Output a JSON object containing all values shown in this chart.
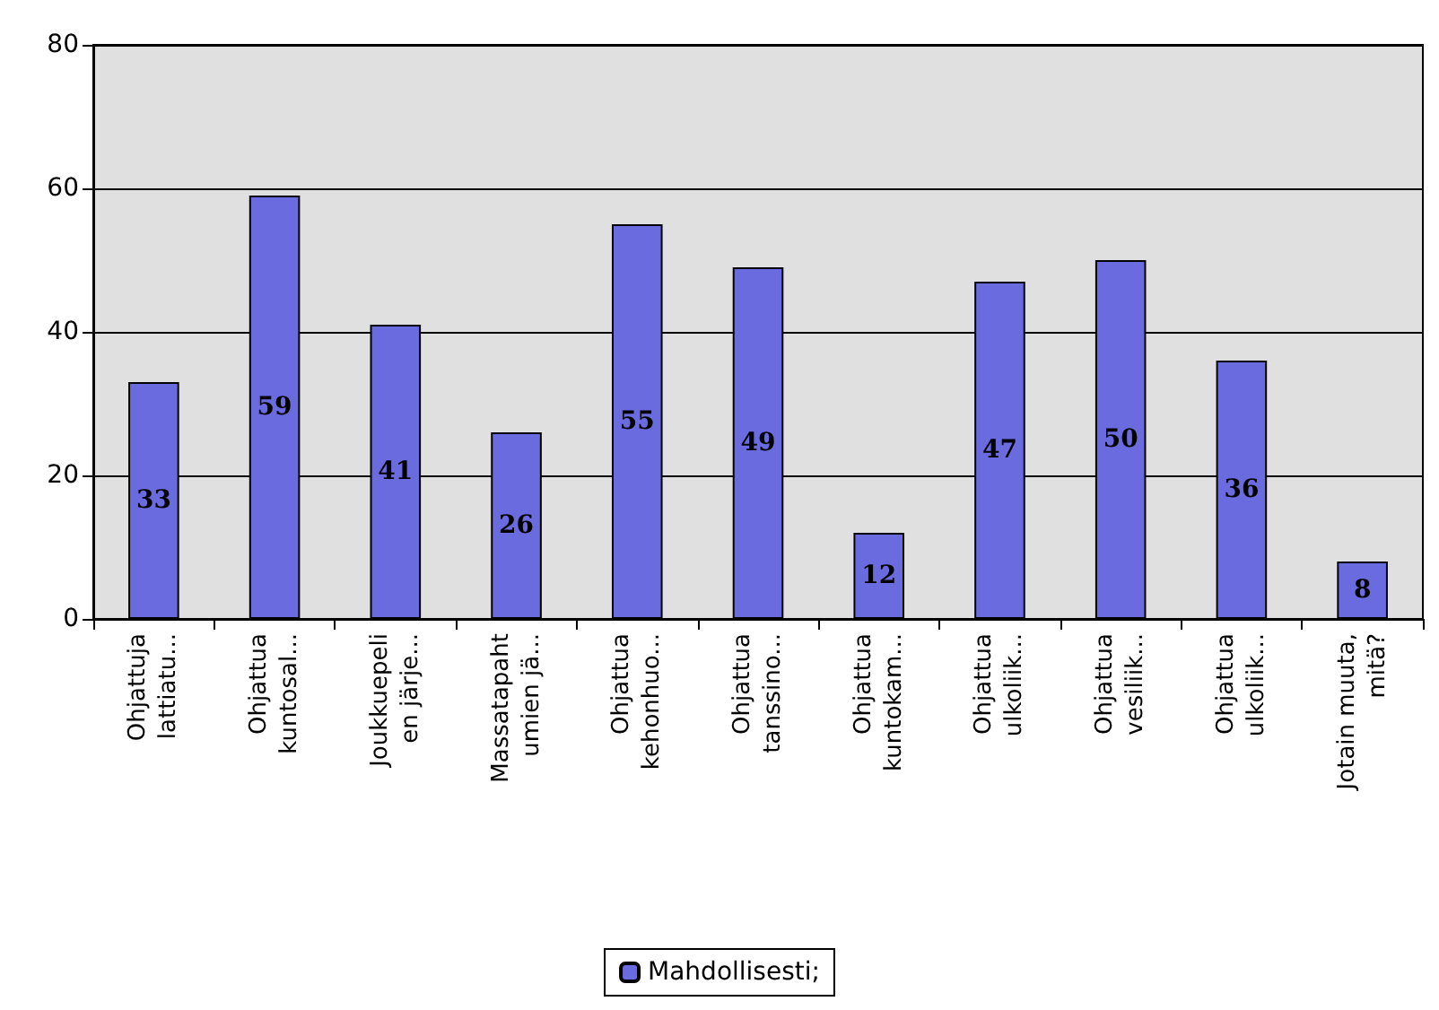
{
  "chart_data": {
    "type": "bar",
    "categories": [
      "Ohjattuja\nlattiatu...",
      "Ohjattua\nkuntosal...",
      "Joukkuepeli\nen järje...",
      "Massatapaht\numien jä...",
      "Ohjattua\nkehonhuo...",
      "Ohjattua\ntanssino...",
      "Ohjattua\nkuntokam...",
      "Ohjattua\nulkoliik...",
      "Ohjattua\nvesiliik...",
      "Ohjattua\nulkoliik...",
      "Jotain muuta,\nmitä?"
    ],
    "series": [
      {
        "name": "Mahdollisesti;",
        "color": "#6b6be0",
        "values": [
          33,
          59,
          41,
          26,
          55,
          49,
          12,
          47,
          50,
          36,
          8
        ]
      }
    ],
    "ylim": [
      0,
      80
    ],
    "yticks": [
      0,
      20,
      40,
      60,
      80
    ],
    "grid": "y",
    "legend": "bottom",
    "data_labels": true
  }
}
